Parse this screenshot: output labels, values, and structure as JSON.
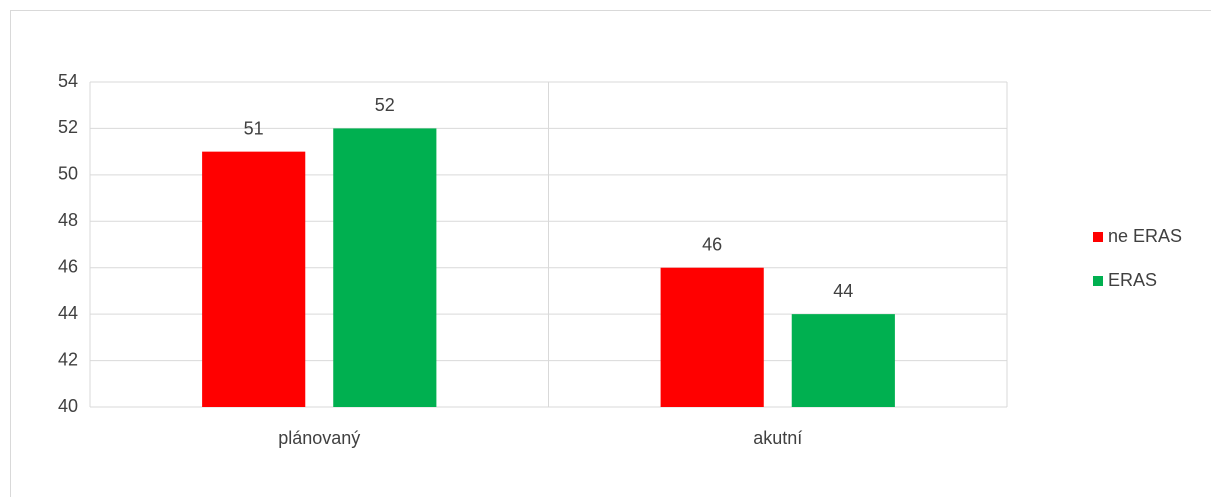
{
  "chart_data": {
    "type": "bar",
    "categories": [
      "plánovaný",
      "akutní"
    ],
    "series": [
      {
        "name": "ne ERAS",
        "color": "#ff0000",
        "values": [
          51,
          46
        ]
      },
      {
        "name": "ERAS",
        "color": "#00b050",
        "values": [
          52,
          44
        ]
      }
    ],
    "ylim": [
      40,
      54
    ],
    "yticks": [
      40,
      42,
      44,
      46,
      48,
      50,
      52,
      54
    ],
    "grid": true,
    "legend": "right"
  }
}
